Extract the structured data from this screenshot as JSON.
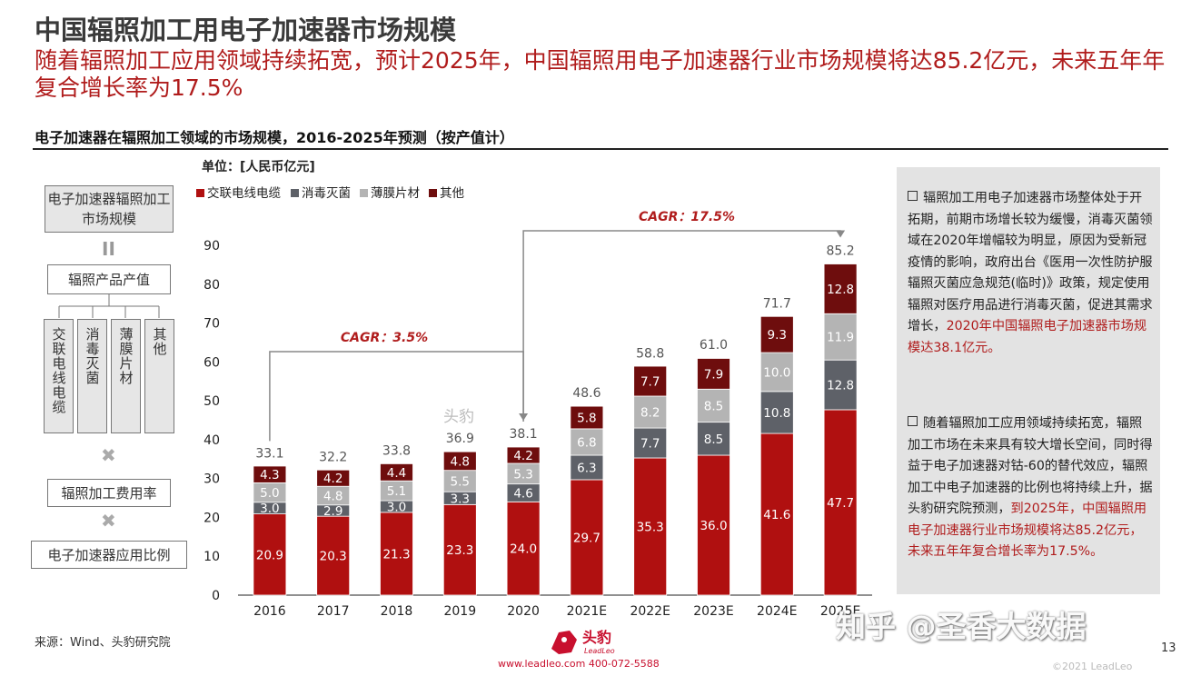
{
  "header": {
    "title": "中国辐照加工用电子加速器市场规模",
    "subtitle": "随着辐照加工应用领域持续拓宽，预计2025年，中国辐照用电子加速器行业市场规模将达85.2亿元，未来五年年复合增长率为17.5%"
  },
  "flow": {
    "top": "电子加速器辐照加工市场规模",
    "equals": "II",
    "product_value": "辐照产品产值",
    "categories": [
      "交联电线电缆",
      "消毒灭菌",
      "薄膜片材",
      "其他"
    ],
    "times1": "✖",
    "fee_rate": "辐照加工费用率",
    "times2": "✖",
    "ratio": "电子加速器应用比例"
  },
  "chart_data": {
    "type": "bar",
    "stacked": true,
    "title": "电子加速器在辐照加工领域的市场规模，2016-2025年预测（按产值计）",
    "unit": "单位：[人民币亿元]",
    "categories": [
      "2016",
      "2017",
      "2018",
      "2019",
      "2020",
      "2021E",
      "2022E",
      "2023E",
      "2024E",
      "2025E"
    ],
    "series": [
      {
        "name": "交联电线电缆",
        "color": "#b01010",
        "values": [
          20.9,
          20.3,
          21.3,
          23.3,
          24.0,
          29.7,
          35.3,
          36.0,
          41.6,
          47.7
        ]
      },
      {
        "name": "消毒灭菌",
        "color": "#5e6168",
        "values": [
          3.0,
          2.9,
          3.0,
          3.3,
          4.6,
          6.3,
          7.7,
          8.5,
          10.8,
          12.8
        ]
      },
      {
        "name": "薄膜片材",
        "color": "#b4b4b4",
        "values": [
          5.0,
          4.8,
          5.1,
          5.5,
          5.3,
          6.8,
          8.2,
          8.5,
          10.0,
          11.9
        ]
      },
      {
        "name": "其他",
        "color": "#6e0d0d",
        "values": [
          4.3,
          4.2,
          4.4,
          4.8,
          4.2,
          5.8,
          7.7,
          7.9,
          9.3,
          12.8
        ]
      }
    ],
    "totals": [
      33.1,
      32.2,
      33.8,
      36.9,
      38.1,
      48.6,
      58.8,
      61.0,
      71.7,
      85.2
    ],
    "ylim": [
      0,
      90
    ],
    "yticks": [
      0,
      10,
      20,
      30,
      40,
      50,
      60,
      70,
      80,
      90
    ],
    "legend_position": "top-left",
    "grid": false,
    "annotations": [
      {
        "text": "CAGR：3.5%",
        "from": "2016",
        "to": "2020"
      },
      {
        "text": "CAGR：17.5%",
        "from": "2020",
        "to": "2025E"
      }
    ],
    "watermark": "头豹"
  },
  "notes": {
    "b1_text": "辐照加工用电子加速器市场整体处于开拓期，前期市场增长较为缓慢，消毒灭菌领域在2020年增幅较为明显，原因为受新冠疫情的影响，政府出台《医用一次性防护服辐照灭菌应急规范(临时)》政策，规定使用辐照对医疗用品进行消毒灭菌，促进其需求增长，",
    "b1_highlight": "2020年中国辐照电子加速器市场规模达38.1亿元。",
    "b2_text": "随着辐照加工应用领域持续拓宽，辐照加工市场在未来具有较大增长空间，同时得益于电子加速器对钴-60的替代效应，辐照加工中电子加速器的比例也将持续上升，据头豹研究院预测，",
    "b2_highlight": "到2025年，中国辐照用电子加速器行业市场规模将达85.2亿元，未来五年年复合增长率为17.5%。"
  },
  "footer": {
    "source": "来源：Wind、头豹研究院",
    "page": "13",
    "copyright": "©2021 LeadLeo",
    "contact": "www.leadleo.com   400-072-5588",
    "logo_text": "头豹",
    "logo_sub": "LeadLeo",
    "watermark": "知乎 @圣香大数据"
  },
  "colors": {
    "accent": "#b01c1c",
    "panel": "#e3e3e3"
  }
}
